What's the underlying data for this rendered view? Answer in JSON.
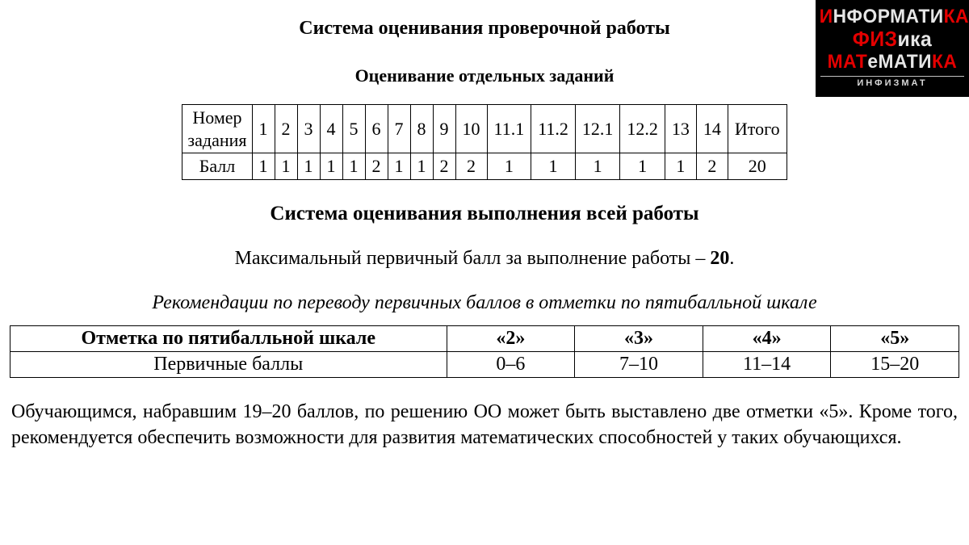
{
  "logo": {
    "row1_a": "И",
    "row1_b": "НФОРМАТИ",
    "row1_c": "КА",
    "row2_a": "ФИЗ",
    "row2_b": "ика",
    "row3_a": "МАТ",
    "row3_b": "е",
    "row3_c": "МАТИ",
    "row3_d": "КА",
    "bottom": "ИНФИЗМАТ",
    "bg_color": "#000000",
    "text_gray": "#e6e6e6",
    "text_red": "#e40000"
  },
  "headings": {
    "main": "Система оценивания проверочной работы",
    "sub": "Оценивание отдельных заданий",
    "sub2": "Система оценивания выполнения всей работы",
    "max_prefix": "Максимальный первичный балл за выполнение работы – ",
    "max_value": "20",
    "max_suffix": ".",
    "rec": "Рекомендации по переводу первичных баллов в отметки по пятибалльной шкале"
  },
  "table1": {
    "row_labels": [
      "Номер\nзадания",
      "Балл"
    ],
    "task_numbers": [
      "1",
      "2",
      "3",
      "4",
      "5",
      "6",
      "7",
      "8",
      "9",
      "10",
      "11.1",
      "11.2",
      "12.1",
      "12.2",
      "13",
      "14",
      "Итого"
    ],
    "scores": [
      "1",
      "1",
      "1",
      "1",
      "1",
      "2",
      "1",
      "1",
      "2",
      "2",
      "1",
      "1",
      "1",
      "1",
      "1",
      "2",
      "20"
    ]
  },
  "table2": {
    "header": [
      "Отметка по пятибалльной шкале",
      "«2»",
      "«3»",
      "«4»",
      "«5»"
    ],
    "row_label": "Первичные баллы",
    "values": [
      "0–6",
      "7–10",
      "11–14",
      "15–20"
    ],
    "col_widths_pct": [
      46,
      13.5,
      13.5,
      13.5,
      13.5
    ]
  },
  "paragraph": "Обучающимся, набравшим 19–20 баллов, по решению ОО может быть выставлено две отметки «5». Кроме того, рекомендуется обеспечить возможности для развития математических способностей у таких обучающихся.",
  "style": {
    "font_family": "Times New Roman",
    "body_text_color": "#000000",
    "background_color": "#ffffff",
    "border_color": "#000000",
    "h_main_fontsize": 24,
    "h_sub_fontsize": 22,
    "h_sub2_fontsize": 25,
    "body_fontsize": 24,
    "table1_fontsize": 22,
    "table2_fontsize": 24
  }
}
